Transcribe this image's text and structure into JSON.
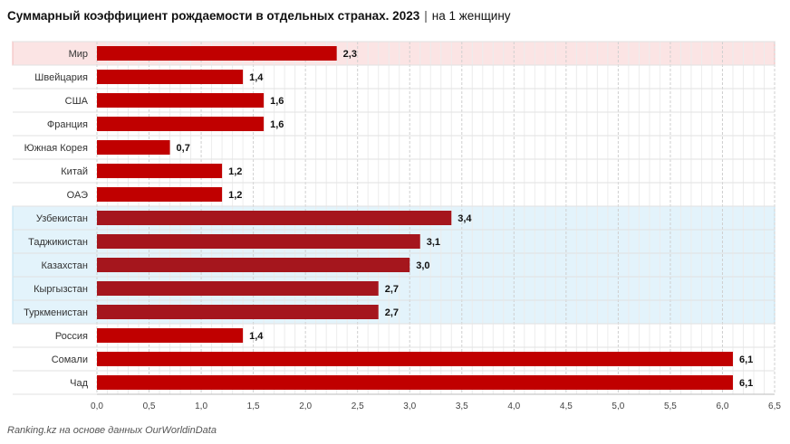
{
  "chart_data": {
    "type": "bar",
    "orientation": "horizontal",
    "title": "Суммарный коэффициент рождаемости в отдельных странах. 2023",
    "subtitle": "на 1 женщину",
    "categories": [
      "Мир",
      "Швейцария",
      "США",
      "Франция",
      "Южная Корея",
      "Китай",
      "ОАЭ",
      "Узбекистан",
      "Таджикистан",
      "Казахстан",
      "Кыргызстан",
      "Туркменистан",
      "Россия",
      "Сомали",
      "Чад"
    ],
    "values": [
      2.3,
      1.4,
      1.6,
      1.6,
      0.7,
      1.2,
      1.2,
      3.4,
      3.1,
      3.0,
      2.7,
      2.7,
      1.4,
      6.1,
      6.1
    ],
    "value_labels": [
      "2,3",
      "1,4",
      "1,6",
      "1,6",
      "0,7",
      "1,2",
      "1,2",
      "3,4",
      "3,1",
      "3,0",
      "2,7",
      "2,7",
      "1,4",
      "6,1",
      "6,1"
    ],
    "xlim": [
      0,
      6.5
    ],
    "xticks": [
      "0,0",
      "0,5",
      "1,0",
      "1,5",
      "2,0",
      "2,5",
      "3,0",
      "3,5",
      "4,0",
      "4,5",
      "5,0",
      "5,5",
      "6,0",
      "6,5"
    ],
    "grid": true,
    "highlight_groups": [
      {
        "categories": [
          "Мир"
        ],
        "color": "#fbe4e4",
        "border": "#f0b8b8"
      },
      {
        "categories": [
          "Узбекистан",
          "Таджикистан",
          "Казахстан",
          "Кыргызстан",
          "Туркменистан"
        ],
        "color": "#e3f3fb",
        "border": "#bfe0f0"
      }
    ],
    "colors": {
      "bar": "#c00000",
      "bar_highlight": "#a5161d"
    },
    "highlight_bars": [
      "Узбекистан",
      "Таджикистан",
      "Казахстан",
      "Кыргызстан",
      "Туркменистан"
    ]
  },
  "source": "Ranking.kz на основе данных OurWorldinData"
}
